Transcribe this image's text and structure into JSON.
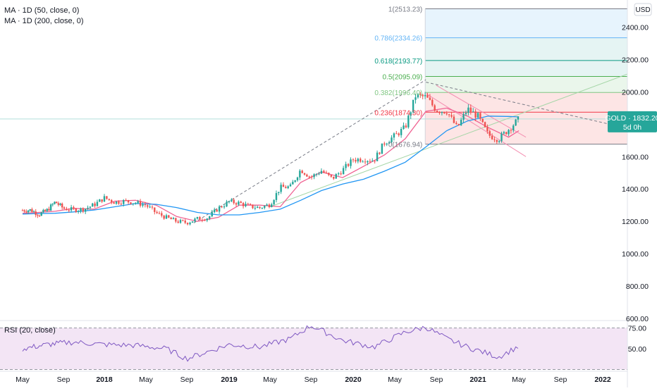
{
  "indicators": {
    "ma50_label": "MA · 1D (50, close, 0)",
    "ma200_label": "MA · 1D (200, close, 0)",
    "rsi_label": "RSI (20, close)"
  },
  "price_scale": {
    "currency": "USD",
    "ticks": [
      "2400.00",
      "2200.00",
      "2000.00",
      "1800.00",
      "1600.00",
      "1400.00",
      "1200.00",
      "1000.00",
      "800.00",
      "600.00"
    ],
    "tick_values": [
      2400,
      2200,
      2000,
      1800,
      1600,
      1400,
      1200,
      1000,
      800,
      600
    ]
  },
  "rsi_scale": {
    "ticks": [
      "75.00",
      "50.00"
    ],
    "tick_values": [
      75,
      50
    ]
  },
  "time_axis": {
    "labels": [
      "May",
      "Sep",
      "2018",
      "May",
      "Sep",
      "2019",
      "May",
      "Sep",
      "2020",
      "May",
      "Sep",
      "2021",
      "May",
      "Sep",
      "2022"
    ]
  },
  "symbol_badge": {
    "symbol": "GOLD",
    "price": "1832.20",
    "price_value": 1832.2,
    "countdown": "5d 0h",
    "color": "#26a69a"
  },
  "colors": {
    "up": "#26a69a",
    "down": "#ef5350",
    "ma50": "#f06292",
    "ma200": "#2196f3",
    "rsi_line": "#7e57c2",
    "rsi_band": "#f3e5f5"
  },
  "fibonacci": {
    "levels": [
      {
        "ratio": 1,
        "price": 2513.23,
        "label": "1(2513.23)",
        "color": "#787b86",
        "fill": "#e6e6e6"
      },
      {
        "ratio": 0.786,
        "price": 2334.26,
        "label": "0.786(2334.26)",
        "color": "#64b5f6",
        "fill": "#e3f2fd"
      },
      {
        "ratio": 0.618,
        "price": 2193.77,
        "label": "0.618(2193.77)",
        "color": "#089981",
        "fill": "#e0f2f1"
      },
      {
        "ratio": 0.5,
        "price": 2095.09,
        "label": "0.5(2095.09)",
        "color": "#4caf50",
        "fill": "#e0f2f1"
      },
      {
        "ratio": 0.382,
        "price": 1996.4,
        "label": "0.382(1996.40)",
        "color": "#81c784",
        "fill": "#e6f4e8"
      },
      {
        "ratio": 0.236,
        "price": 1874.3,
        "label": "0.236(1874.30)",
        "color": "#f23645",
        "fill": "#fde0e0"
      },
      {
        "ratio": 0,
        "price": 1676.94,
        "label": "0(1676.94)",
        "color": "#787b86",
        "fill": "#fde0e0"
      }
    ]
  },
  "chart_data": {
    "type": "candlestick",
    "symbol": "GOLD",
    "ylabel": "USD",
    "ylim": [
      600,
      2500
    ],
    "grid": false,
    "x_range": [
      "2017-05",
      "2022-01"
    ],
    "series": [
      {
        "name": "MA · 1D (50, close, 0)",
        "x": [
          "2017-04",
          "2017-06",
          "2017-08",
          "2017-10",
          "2017-12",
          "2018-02",
          "2018-04",
          "2018-06",
          "2018-08",
          "2018-10",
          "2018-12",
          "2019-02",
          "2019-04",
          "2019-06",
          "2019-08",
          "2019-10",
          "2019-12",
          "2020-02",
          "2020-04",
          "2020-06",
          "2020-08",
          "2020-10",
          "2020-12",
          "2021-02",
          "2021-04",
          "2021-05"
        ],
        "values": [
          1250,
          1255,
          1262,
          1280,
          1275,
          1325,
          1330,
          1300,
          1230,
          1200,
          1225,
          1300,
          1300,
          1290,
          1440,
          1505,
          1470,
          1540,
          1610,
          1710,
          1880,
          1900,
          1850,
          1780,
          1720,
          1760
        ]
      },
      {
        "name": "MA · 1D (200, close, 0)",
        "x": [
          "2017-04",
          "2017-06",
          "2017-08",
          "2017-10",
          "2017-12",
          "2018-02",
          "2018-04",
          "2018-06",
          "2018-08",
          "2018-10",
          "2018-12",
          "2019-02",
          "2019-04",
          "2019-06",
          "2019-08",
          "2019-10",
          "2019-12",
          "2020-02",
          "2020-04",
          "2020-06",
          "2020-08",
          "2020-10",
          "2020-12",
          "2021-02",
          "2021-04",
          "2021-05"
        ],
        "values": [
          1245,
          1248,
          1250,
          1258,
          1270,
          1290,
          1310,
          1305,
          1285,
          1255,
          1240,
          1240,
          1255,
          1275,
          1330,
          1390,
          1430,
          1460,
          1510,
          1565,
          1660,
          1760,
          1820,
          1850,
          1848,
          1845
        ]
      },
      {
        "name": "RSI (20, close)",
        "x": [
          "2017-04",
          "2017-07",
          "2017-10",
          "2018-01",
          "2018-04",
          "2018-07",
          "2018-09",
          "2019-01",
          "2019-04",
          "2019-07",
          "2019-09",
          "2019-12",
          "2020-03",
          "2020-06",
          "2020-08",
          "2020-10",
          "2020-12",
          "2021-03",
          "2021-05"
        ],
        "values": [
          50,
          55,
          58,
          55,
          54,
          50,
          38,
          55,
          52,
          62,
          78,
          60,
          52,
          70,
          76,
          62,
          52,
          40,
          53
        ]
      }
    ],
    "candles": {
      "x": [
        "2017-04",
        "2017-05",
        "2017-06",
        "2017-07",
        "2017-08",
        "2017-09",
        "2017-10",
        "2017-11",
        "2017-12",
        "2018-01",
        "2018-02",
        "2018-03",
        "2018-04",
        "2018-05",
        "2018-06",
        "2018-07",
        "2018-08",
        "2018-09",
        "2018-10",
        "2018-11",
        "2018-12",
        "2019-01",
        "2019-02",
        "2019-03",
        "2019-04",
        "2019-05",
        "2019-06",
        "2019-07",
        "2019-08",
        "2019-09",
        "2019-10",
        "2019-11",
        "2019-12",
        "2020-01",
        "2020-02",
        "2020-03",
        "2020-04",
        "2020-05",
        "2020-06",
        "2020-07",
        "2020-08",
        "2020-09",
        "2020-10",
        "2020-11",
        "2020-12",
        "2021-01",
        "2021-02",
        "2021-03",
        "2021-04",
        "2021-05"
      ],
      "close": [
        1268,
        1270,
        1242,
        1268,
        1320,
        1280,
        1271,
        1275,
        1302,
        1345,
        1318,
        1325,
        1315,
        1300,
        1252,
        1223,
        1200,
        1192,
        1215,
        1222,
        1282,
        1321,
        1313,
        1292,
        1284,
        1305,
        1409,
        1413,
        1520,
        1472,
        1513,
        1463,
        1517,
        1582,
        1585,
        1577,
        1686,
        1728,
        1780,
        1975,
        1968,
        1887,
        1880,
        1776,
        1895,
        1848,
        1734,
        1707,
        1769,
        1832
      ]
    }
  }
}
